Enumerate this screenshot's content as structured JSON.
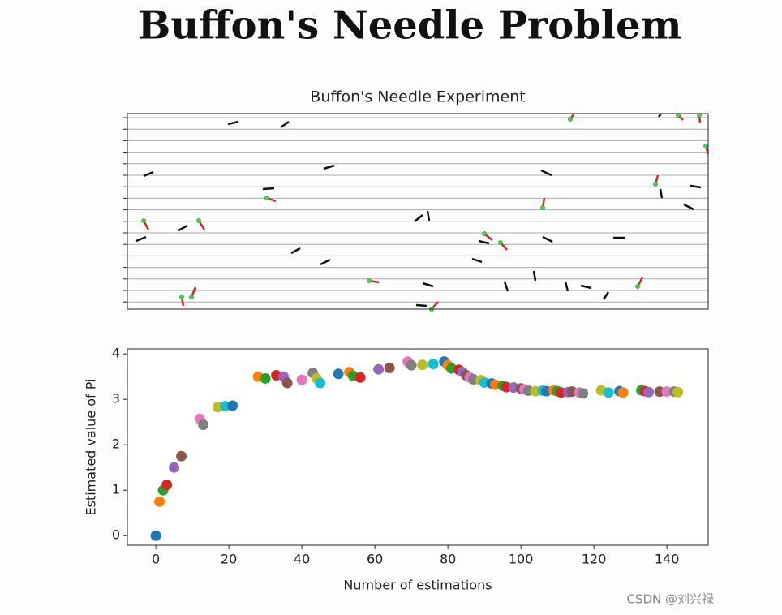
{
  "header": {
    "title": "Buffon's Needle Problem"
  },
  "experiment": {
    "title": "Buffon's Needle Experiment"
  },
  "chart_data": {
    "type": "scatter",
    "xlabel": "Number of estimations",
    "ylabel": "Estimated value of Pi",
    "x": [
      0,
      1,
      2,
      3,
      5,
      7,
      12,
      13,
      17,
      19,
      21,
      28,
      30,
      33,
      35,
      36,
      40,
      43,
      44,
      45,
      50,
      53,
      54,
      56,
      61,
      64,
      69,
      70,
      73,
      76,
      79,
      80,
      81,
      83,
      84,
      85,
      86,
      87,
      89,
      90,
      92,
      93,
      95,
      96,
      98,
      100,
      101,
      102,
      104,
      106,
      107,
      109,
      110,
      111,
      113,
      114,
      116,
      117,
      122,
      124,
      127,
      128,
      133,
      134,
      135,
      138,
      140,
      142,
      143
    ],
    "values": [
      0,
      0.75,
      1,
      1.12,
      1.5,
      1.75,
      2.57,
      2.44,
      2.83,
      2.85,
      2.86,
      3.5,
      3.46,
      3.53,
      3.5,
      3.36,
      3.43,
      3.58,
      3.46,
      3.36,
      3.56,
      3.6,
      3.52,
      3.48,
      3.66,
      3.69,
      3.83,
      3.75,
      3.76,
      3.78,
      3.83,
      3.75,
      3.68,
      3.65,
      3.6,
      3.53,
      3.48,
      3.44,
      3.42,
      3.37,
      3.35,
      3.32,
      3.3,
      3.27,
      3.26,
      3.24,
      3.22,
      3.19,
      3.18,
      3.19,
      3.18,
      3.2,
      3.18,
      3.15,
      3.16,
      3.17,
      3.15,
      3.13,
      3.2,
      3.15,
      3.18,
      3.15,
      3.2,
      3.18,
      3.16,
      3.17,
      3.17,
      3.17,
      3.16
    ],
    "colors": [
      "#1f77b4",
      "#ff7f0e",
      "#2ca02c",
      "#d62728",
      "#9467bd",
      "#8c564b",
      "#e377c2",
      "#7f7f7f",
      "#bcbd22",
      "#17becf"
    ],
    "xlim": [
      -7.8,
      151.3
    ],
    "xticks": [
      0,
      20,
      40,
      60,
      80,
      100,
      120,
      140
    ],
    "ylim": [
      -0.21,
      4.11
    ],
    "yticks": [
      0,
      1,
      2,
      3,
      4
    ]
  },
  "watermark": "CSDN @刘兴禄"
}
